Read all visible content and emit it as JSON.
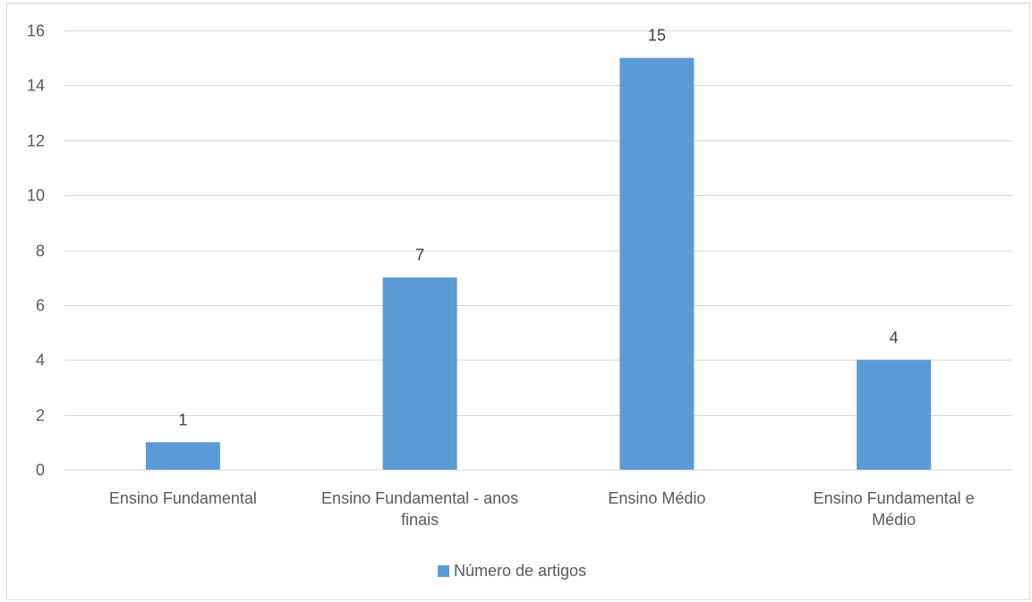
{
  "chart_data": {
    "type": "bar",
    "categories": [
      "Ensino Fundamental",
      "Ensino Fundamental - anos finais",
      "Ensino Médio",
      "Ensino Fundamental e Médio"
    ],
    "category_lines": [
      [
        "Ensino Fundamental"
      ],
      [
        "Ensino Fundamental - anos",
        "finais"
      ],
      [
        "Ensino Médio"
      ],
      [
        "Ensino Fundamental e",
        "Médio"
      ]
    ],
    "series": [
      {
        "name": "Número de artigos",
        "values": [
          1,
          7,
          15,
          4
        ],
        "color": "#5b9bd5"
      }
    ],
    "ylim": [
      0,
      16
    ],
    "yticks": [
      0,
      2,
      4,
      6,
      8,
      10,
      12,
      14,
      16
    ],
    "grid": true,
    "legend_position": "bottom",
    "colors": {
      "grid": "#d9d9d9",
      "axis_text": "#595959",
      "data_label": "#404040"
    }
  }
}
